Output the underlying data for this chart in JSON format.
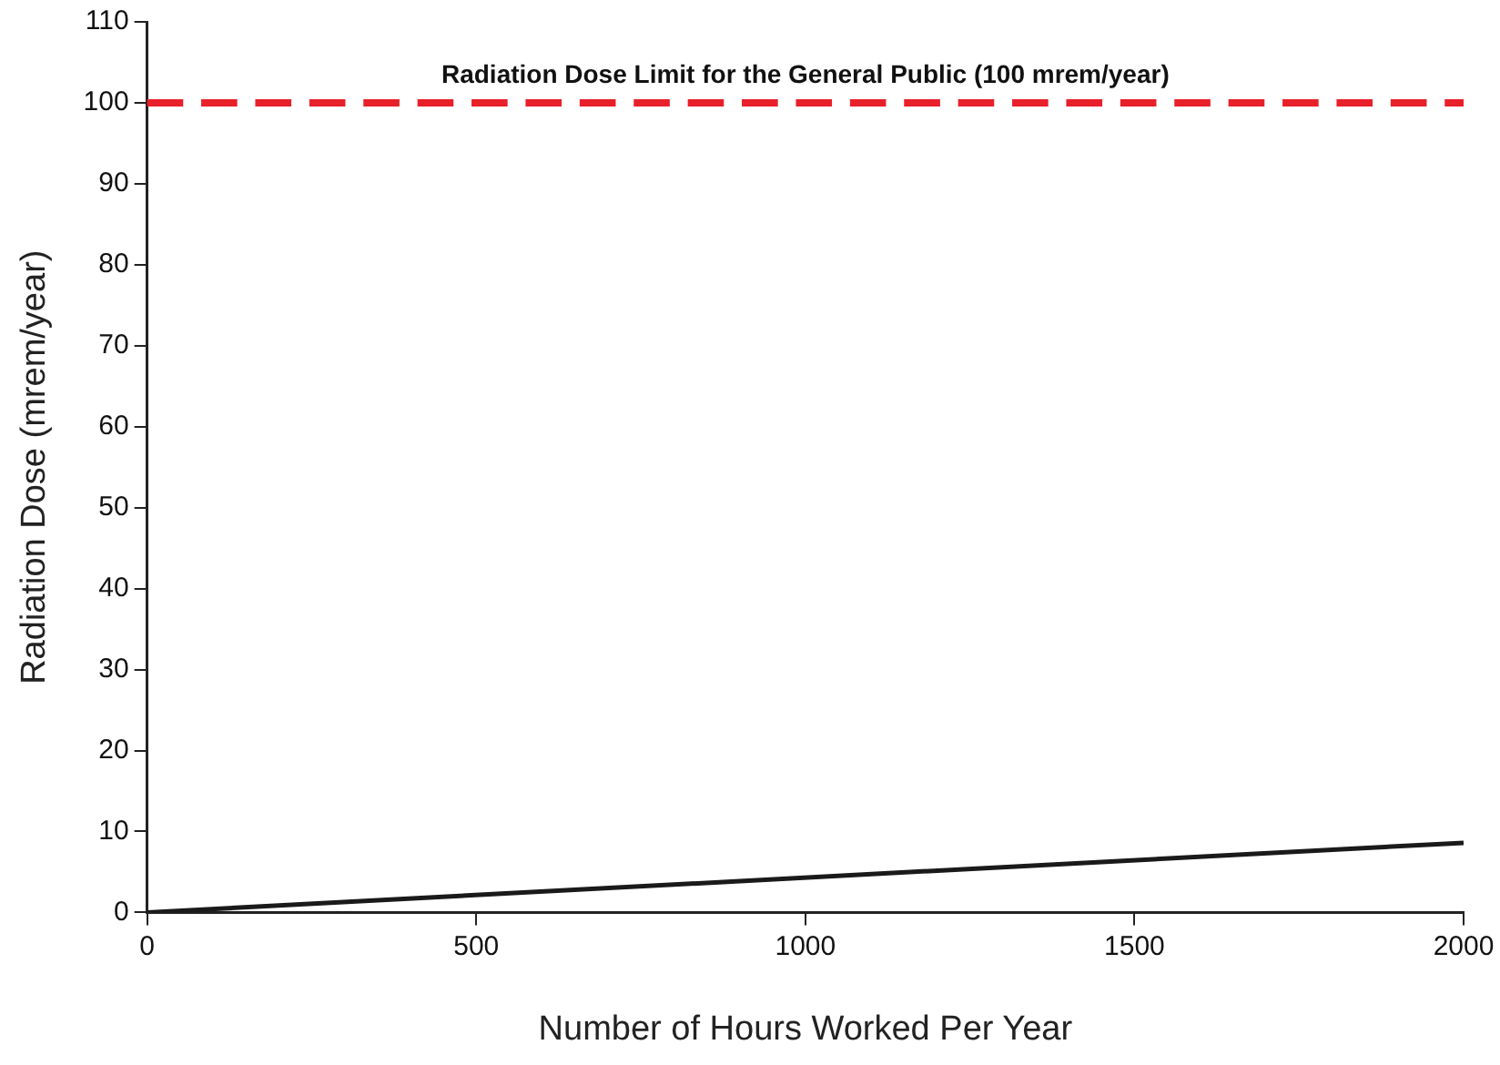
{
  "chart_data": {
    "type": "line",
    "xlabel": "Number of Hours Worked Per Year",
    "ylabel": "Radiation Dose (mrem/year)",
    "x": [
      0,
      2000
    ],
    "series": [
      {
        "color": "#1a1a1a",
        "values": [
          0,
          8.6
        ]
      }
    ],
    "xlim": [
      0,
      2000
    ],
    "xticks": [
      0,
      500,
      1000,
      1500,
      2000
    ],
    "ylim": [
      0,
      110
    ],
    "yticks": [
      0,
      10,
      20,
      30,
      40,
      50,
      60,
      70,
      80,
      90,
      100,
      110
    ],
    "ref_lines": [
      {
        "axis": "y",
        "value": 100,
        "label": "Radiation Dose Limit for the General Public (100 mrem/year)",
        "color": "#e8202a",
        "line_style": "dashed"
      }
    ],
    "grid": false,
    "legend": false,
    "marker": "none",
    "line_style": "solid"
  }
}
